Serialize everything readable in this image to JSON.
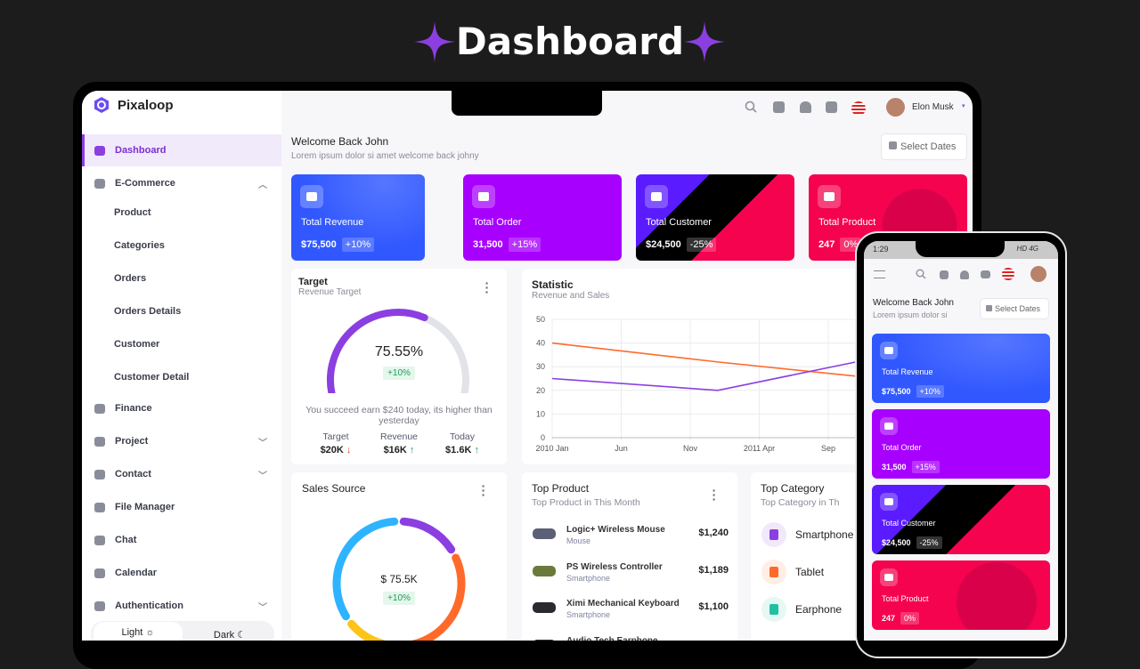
{
  "hero_title": "Dashboard",
  "colors": {
    "accent": "#8b3fe0",
    "revenue": "#3158ff",
    "order": "#a800ff",
    "customer": "#000000",
    "product": "#f5034f",
    "orange_line": "#ff6a2b",
    "purple_line": "#8b3fe0",
    "positive": "#1e9e5c",
    "negative": "#e53935"
  },
  "brand": {
    "name": "Pixaloop",
    "icon": "hexagon-logo-icon"
  },
  "sidebar": {
    "items": [
      {
        "label": "Dashboard",
        "icon": "grid-icon",
        "active": true
      },
      {
        "label": "E-Commerce",
        "icon": "bag-icon",
        "expanded": true
      },
      {
        "label": "Product",
        "sub": true
      },
      {
        "label": "Categories",
        "sub": true
      },
      {
        "label": "Orders",
        "sub": true
      },
      {
        "label": "Orders Details",
        "sub": true
      },
      {
        "label": "Customer",
        "sub": true
      },
      {
        "label": "Customer Detail",
        "sub": true
      },
      {
        "label": "Finance",
        "icon": "pie-icon"
      },
      {
        "label": "Project",
        "icon": "box-icon",
        "chevron": true
      },
      {
        "label": "Contact",
        "icon": "contact-icon",
        "chevron": true
      },
      {
        "label": "File Manager",
        "icon": "folder-icon"
      },
      {
        "label": "Chat",
        "icon": "chat-icon"
      },
      {
        "label": "Calendar",
        "icon": "calendar-icon"
      },
      {
        "label": "Authentication",
        "icon": "shield-icon",
        "chevron": true
      }
    ],
    "theme": {
      "light": "Light",
      "dark": "Dark",
      "selected": "Light"
    }
  },
  "header": {
    "user_name": "Elon Musk",
    "icons": [
      "search-icon",
      "calendar-icon",
      "bell-icon",
      "mail-icon",
      "us-flag-icon"
    ]
  },
  "welcome": {
    "title": "Welcome Back John",
    "subtitle": "Lorem ipsum dolor si amet welcome back johny",
    "phone_subtitle": "Lorem ipsum dolor si",
    "select_dates": "Select Dates"
  },
  "stats": [
    {
      "label": "Total Revenue",
      "value": "$75,500",
      "change": "+10%",
      "icon": "money-icon"
    },
    {
      "label": "Total Order",
      "value": "31,500",
      "change": "+15%",
      "icon": "card-icon"
    },
    {
      "label": "Total Customer",
      "value": "$24,500",
      "change": "-25%",
      "icon": "user-add-icon"
    },
    {
      "label": "Total Product",
      "value": "247",
      "change": "0%",
      "icon": "archive-icon"
    }
  ],
  "target": {
    "title": "Target",
    "subtitle": "Revenue Target",
    "percent": "75.55%",
    "percent_value": 75.55,
    "change": "+10%",
    "message": "You succeed earn $240 today, its higher than yesterday",
    "metrics": [
      {
        "label": "Target",
        "value": "$20K",
        "trend": "down"
      },
      {
        "label": "Revenue",
        "value": "$16K",
        "trend": "up"
      },
      {
        "label": "Today",
        "value": "$1.6K",
        "trend": "up"
      }
    ]
  },
  "chart_data": {
    "type": "line",
    "title": "Statistic",
    "subtitle": "Revenue and Sales",
    "x_ticks": [
      "2010 Jan",
      "Jun",
      "Nov",
      "2011 Apr",
      "Sep"
    ],
    "x": [
      "2010-01",
      "2011-01",
      "2011-11"
    ],
    "series": [
      {
        "color": "#ff6a2b",
        "values": [
          40,
          32,
          26
        ]
      },
      {
        "color": "#8b3fe0",
        "values": [
          25,
          20,
          32
        ]
      }
    ],
    "y_ticks": [
      0,
      10,
      20,
      30,
      40,
      50
    ],
    "ylim": [
      0,
      50
    ],
    "grid": true
  },
  "sales_source": {
    "title": "Sales Source",
    "total": "$ 75.5K",
    "change": "+10%",
    "segments": [
      {
        "color": "#8b3fe0",
        "share": 0.17
      },
      {
        "color": "#ff6a2b",
        "share": 0.36
      },
      {
        "color": "#fcc419",
        "share": 0.12
      },
      {
        "color": "#2eb4ff",
        "share": 0.35
      }
    ]
  },
  "top_product": {
    "title": "Top Product",
    "subtitle": "Top Product in This Month",
    "items": [
      {
        "name": "Logic+ Wireless Mouse",
        "category": "Mouse",
        "price": "$1,240"
      },
      {
        "name": "PS Wireless Controller",
        "category": "Smartphone",
        "price": "$1,189"
      },
      {
        "name": "Ximi Mechanical Keyboard",
        "category": "Smartphone",
        "price": "$1,100"
      },
      {
        "name": "Audio Tech Earphone",
        "category": "",
        "price": ""
      }
    ]
  },
  "top_category": {
    "title": "Top Category",
    "subtitle": "Top Category in Th",
    "items": [
      {
        "name": "Smartphone",
        "color": "#8b3fe0",
        "bg": "#f1e8fb"
      },
      {
        "name": "Tablet",
        "color": "#ff6a2b",
        "bg": "#ffeee5"
      },
      {
        "name": "Earphone",
        "color": "#20c0a0",
        "bg": "#e5f8f3"
      }
    ]
  },
  "phone": {
    "time": "1:29",
    "status": "HD 4G"
  }
}
